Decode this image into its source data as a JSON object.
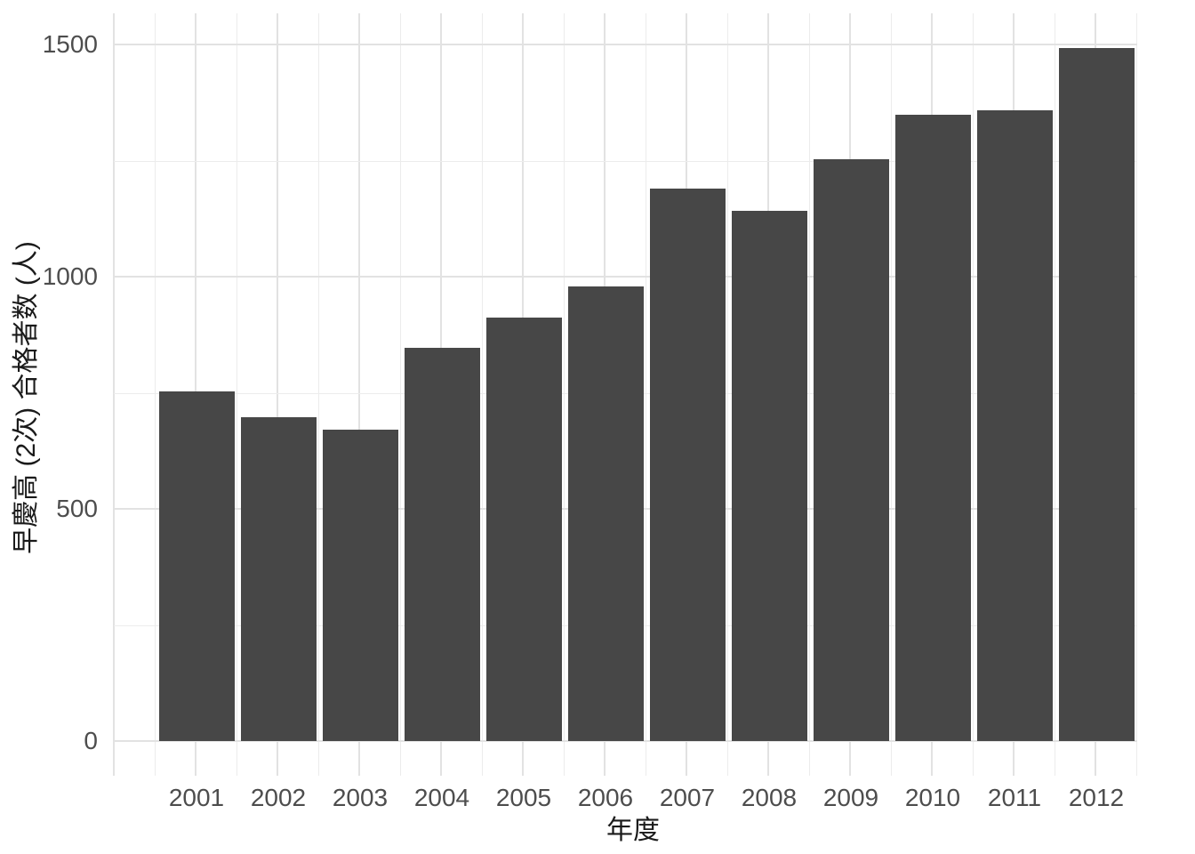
{
  "chart_data": {
    "type": "bar",
    "title": "",
    "xlabel": "年度",
    "ylabel": "早慶高 (2次) 合格者数 (人)",
    "categories": [
      "2001",
      "2002",
      "2003",
      "2004",
      "2005",
      "2006",
      "2007",
      "2008",
      "2009",
      "2010",
      "2011",
      "2012"
    ],
    "values": [
      752,
      697,
      671,
      846,
      912,
      979,
      1190,
      1142,
      1252,
      1349,
      1358,
      1492
    ],
    "series_name": "早慶高 (2次) 合格者数",
    "ylim": [
      0,
      1500
    ],
    "yticks": [
      0,
      500,
      1000,
      1500
    ],
    "ytick_labels": [
      "0",
      "500",
      "1000",
      "1500"
    ],
    "yminor": [
      250,
      750,
      1250
    ],
    "grid": "major and minor, light gray on white",
    "legend": "none",
    "colors": {
      "bar_fill": "#474747",
      "background": "#ffffff",
      "grid_major": "#e2e2e2",
      "grid_minor": "#ececec",
      "tick_label": "#4d4d4d",
      "axis_title": "#1a1a1a"
    }
  }
}
